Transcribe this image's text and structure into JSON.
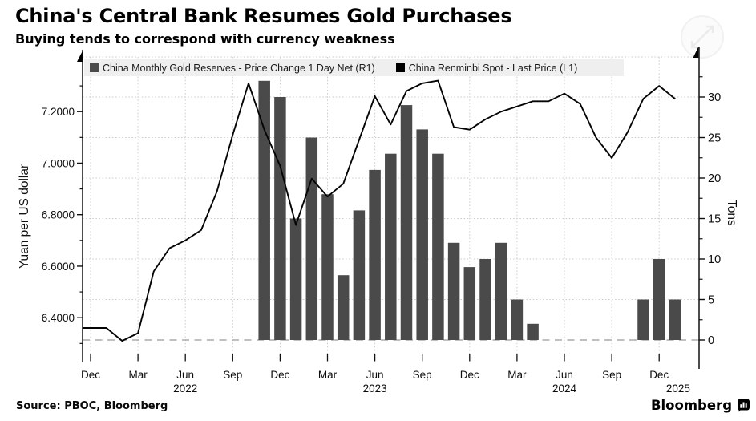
{
  "header": {
    "title": "China's Central Bank Resumes Gold Purchases",
    "subtitle": "Buying tends to correspond with currency weakness"
  },
  "legend": {
    "items": [
      {
        "label": "China Monthly Gold Reserves - Price Change 1 Day Net (R1)",
        "color": "#4a4a4a"
      },
      {
        "label": "China Renminbi Spot - Last Price (L1)",
        "color": "#000000"
      }
    ]
  },
  "footer": {
    "source": "Source: PBOC, Bloomberg",
    "brand": "Bloomberg"
  },
  "chart_data": {
    "type": "combo",
    "x": [
      "2021-11",
      "2021-12",
      "2022-01",
      "2022-02",
      "2022-03",
      "2022-04",
      "2022-05",
      "2022-06",
      "2022-07",
      "2022-08",
      "2022-09",
      "2022-10",
      "2022-11",
      "2022-12",
      "2023-01",
      "2023-02",
      "2023-03",
      "2023-04",
      "2023-05",
      "2023-06",
      "2023-07",
      "2023-08",
      "2023-09",
      "2023-10",
      "2023-11",
      "2023-12",
      "2024-01",
      "2024-02",
      "2024-03",
      "2024-04",
      "2024-05",
      "2024-06",
      "2024-07",
      "2024-08",
      "2024-09",
      "2024-10",
      "2024-11",
      "2024-12",
      "2025-01"
    ],
    "x_ticks": [
      {
        "i": 1,
        "label": "Dec"
      },
      {
        "i": 4,
        "label": "Mar"
      },
      {
        "i": 7,
        "label": "Jun"
      },
      {
        "i": 10,
        "label": "Sep"
      },
      {
        "i": 13,
        "label": "Dec"
      },
      {
        "i": 16,
        "label": "Mar"
      },
      {
        "i": 19,
        "label": "Jun"
      },
      {
        "i": 22,
        "label": "Sep"
      },
      {
        "i": 25,
        "label": "Dec"
      },
      {
        "i": 28,
        "label": "Mar"
      },
      {
        "i": 31,
        "label": "Jun"
      },
      {
        "i": 34,
        "label": "Sep"
      },
      {
        "i": 37,
        "label": "Dec"
      }
    ],
    "year_labels": [
      {
        "i": 7,
        "label": "2022"
      },
      {
        "i": 19,
        "label": "2023"
      },
      {
        "i": 31,
        "label": "2024"
      },
      {
        "i": 38.2,
        "label": "2025"
      }
    ],
    "left_axis": {
      "title": "Yuan per US dollar",
      "ticks": [
        6.4,
        6.6,
        6.8,
        7.0,
        7.2
      ],
      "minor_ticks": [
        6.3,
        6.5,
        6.7,
        6.9,
        7.1,
        7.3
      ],
      "decimals": 4
    },
    "right_axis": {
      "title": "Tons",
      "ticks": [
        0,
        5,
        10,
        15,
        20,
        25,
        30
      ],
      "minor_ticks": [
        2.5,
        7.5,
        12.5,
        17.5,
        22.5,
        27.5,
        32.5
      ]
    },
    "zero_baseline": {
      "axis": "right",
      "value": 0,
      "style": "dashed"
    },
    "grid": {
      "vertical": "quarterly",
      "horizontal": "right-axis-ticks"
    },
    "series": [
      {
        "name": "China Monthly Gold Reserves - Price Change 1 Day Net (R1)",
        "type": "bar",
        "axis": "right",
        "color": "#4a4a4a",
        "values": [
          null,
          null,
          null,
          null,
          null,
          null,
          null,
          null,
          null,
          null,
          null,
          null,
          32,
          30,
          15,
          25,
          18,
          8,
          16,
          21,
          23,
          29,
          26,
          23,
          12,
          9,
          10,
          12,
          5,
          2,
          0,
          0,
          0,
          0,
          0,
          0,
          5,
          10,
          5
        ]
      },
      {
        "name": "China Renminbi Spot - Last Price (L1)",
        "type": "line",
        "axis": "left",
        "color": "#050505",
        "values": [
          6.36,
          6.36,
          6.36,
          6.31,
          6.34,
          6.58,
          6.67,
          6.7,
          6.74,
          6.89,
          7.11,
          7.31,
          7.13,
          6.99,
          6.76,
          6.94,
          6.87,
          6.92,
          7.09,
          7.26,
          7.15,
          7.28,
          7.31,
          7.32,
          7.14,
          7.13,
          7.17,
          7.2,
          7.22,
          7.24,
          7.24,
          7.27,
          7.23,
          7.1,
          7.02,
          7.12,
          7.25,
          7.3,
          7.25
        ]
      }
    ]
  }
}
